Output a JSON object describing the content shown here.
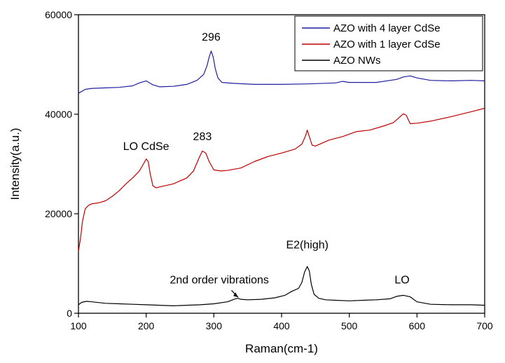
{
  "chart_data": {
    "type": "line",
    "xlabel": "Raman(cm-1)",
    "ylabel": "Intensity(a.u.)",
    "xlim": [
      100,
      700
    ],
    "ylim": [
      0,
      60000
    ],
    "xticks": [
      100,
      200,
      300,
      400,
      500,
      600,
      700
    ],
    "yticks": [
      0,
      20000,
      40000,
      60000
    ],
    "grid": false,
    "legend_position": "top-right",
    "series": [
      {
        "name": "AZO with 4 layer CdSe",
        "color": "#1f1f9f",
        "x": [
          100,
          110,
          120,
          140,
          160,
          180,
          190,
          200,
          210,
          220,
          240,
          260,
          275,
          285,
          290,
          293,
          296,
          299,
          302,
          306,
          312,
          330,
          360,
          400,
          440,
          480,
          490,
          500,
          540,
          570,
          580,
          590,
          600,
          620,
          650,
          680,
          700
        ],
        "y": [
          44200,
          45000,
          45200,
          45300,
          45400,
          45700,
          46300,
          46700,
          45900,
          45500,
          45600,
          46000,
          46800,
          48000,
          49800,
          51500,
          52700,
          51500,
          49200,
          47300,
          46400,
          46200,
          46000,
          46000,
          46100,
          46300,
          46600,
          46400,
          46400,
          47000,
          47500,
          47700,
          47300,
          46800,
          46700,
          46800,
          46700
        ]
      },
      {
        "name": "AZO with 1 layer CdSe",
        "color": "#c00000",
        "x": [
          100,
          103,
          106,
          110,
          115,
          120,
          130,
          140,
          150,
          160,
          170,
          180,
          190,
          196,
          200,
          203,
          206,
          210,
          215,
          220,
          240,
          260,
          270,
          278,
          283,
          288,
          293,
          300,
          310,
          320,
          340,
          360,
          380,
          400,
          420,
          430,
          435,
          438,
          441,
          445,
          450,
          470,
          490,
          510,
          530,
          550,
          565,
          575,
          580,
          584,
          590,
          600,
          620,
          650,
          680,
          700
        ],
        "y": [
          12500,
          15000,
          18500,
          21000,
          21700,
          22000,
          22200,
          22600,
          23500,
          24600,
          26000,
          27200,
          28600,
          30000,
          31000,
          30500,
          28000,
          25600,
          25200,
          25400,
          26000,
          27200,
          28600,
          31200,
          32600,
          32200,
          30500,
          28800,
          28600,
          28700,
          29200,
          30500,
          31500,
          32200,
          33000,
          34000,
          35500,
          36800,
          35500,
          33800,
          33600,
          34800,
          35500,
          36500,
          36800,
          37600,
          38300,
          39500,
          40100,
          39800,
          38100,
          38200,
          38600,
          39500,
          40500,
          41200
        ]
      },
      {
        "name": "AZO NWs",
        "color": "#000000",
        "x": [
          100,
          105,
          112,
          120,
          140,
          160,
          180,
          200,
          220,
          240,
          260,
          280,
          300,
          320,
          330,
          335,
          340,
          350,
          370,
          390,
          405,
          415,
          425,
          430,
          434,
          438,
          441,
          444,
          448,
          455,
          465,
          480,
          500,
          520,
          540,
          560,
          570,
          580,
          590,
          600,
          620,
          650,
          680,
          700
        ],
        "y": [
          1700,
          2200,
          2400,
          2300,
          2000,
          1900,
          1800,
          1700,
          1600,
          1500,
          1600,
          1700,
          1900,
          2300,
          2800,
          3000,
          2800,
          2700,
          2800,
          3100,
          3600,
          4400,
          5000,
          6200,
          8300,
          9400,
          8500,
          5800,
          3800,
          3000,
          2700,
          2600,
          2500,
          2600,
          2700,
          2900,
          3400,
          3600,
          3300,
          2300,
          1800,
          1700,
          1700,
          1600
        ]
      }
    ],
    "annotations": [
      {
        "text": "296",
        "x": 296,
        "y": 54800
      },
      {
        "text": "283",
        "x": 283,
        "y": 34800
      },
      {
        "text": "LO CdSe",
        "x": 200,
        "y": 32800
      },
      {
        "text": "E2(high)",
        "x": 438,
        "y": 13000
      },
      {
        "text": "2nd order vibrations",
        "x": 235,
        "y": 6000
      },
      {
        "text": "LO",
        "x": 578,
        "y": 6000
      }
    ]
  }
}
